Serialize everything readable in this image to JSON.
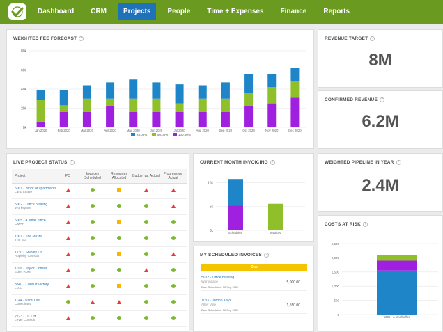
{
  "nav": {
    "items": [
      "Dashboard",
      "CRM",
      "Projects",
      "People",
      "Time + Expenses",
      "Finance",
      "Reports"
    ],
    "active": "Projects",
    "colors": {
      "bar": "#6a9a1f",
      "active": "#1f72b8"
    }
  },
  "forecast": {
    "title": "WEIGHTED FEE FORECAST",
    "chart_data": {
      "type": "bar",
      "stacked": true,
      "categories": [
        "Jan 2020",
        "Feb 2020",
        "Mar 2020",
        "Apr 2020",
        "May 2020",
        "Jun 2020",
        "Jul 2020",
        "Aug 2020",
        "Sep 2020",
        "Oct 2020",
        "Nov 2020",
        "Dec 2020"
      ],
      "series": [
        {
          "name": "100.00%",
          "color": "#a020e0",
          "values": [
            6000,
            16000,
            16000,
            22000,
            16000,
            16000,
            16000,
            16000,
            16000,
            22000,
            25000,
            31000
          ]
        },
        {
          "name": "50.00%",
          "color": "#8fc02a",
          "values": [
            23000,
            7000,
            14000,
            8000,
            14000,
            14000,
            9000,
            14000,
            14000,
            14000,
            17000,
            17000
          ]
        },
        {
          "name": "25.00%",
          "color": "#1e86c8",
          "values": [
            10000,
            16000,
            14000,
            17000,
            20000,
            17000,
            20000,
            14000,
            17000,
            20000,
            14000,
            14000
          ]
        }
      ],
      "yticks": [
        "0k",
        "20k",
        "40k",
        "60k",
        "80k"
      ],
      "ylim": [
        0,
        80000
      ],
      "legend": [
        "25.00%",
        "50.00%",
        "100.00%"
      ],
      "legend_position": "bottom"
    }
  },
  "revenue_target": {
    "title": "REVENUE TARGET",
    "value": "8M"
  },
  "confirmed_revenue": {
    "title": "CONFIRMED REVENUE",
    "value": "6.2M"
  },
  "pipeline": {
    "title": "WEIGHTED PIPELINE IN YEAR",
    "value": "2.4M"
  },
  "live_status": {
    "title": "LIVE PROJECT STATUS",
    "columns": [
      "Project",
      "PO",
      "Invoices Scheduled",
      "Resources Allocated",
      "Budget vs. Actual",
      "Progress vs. Actual"
    ],
    "rows": [
      {
        "name": "5001 - Block of apartments",
        "client": "Land Lease",
        "s": [
          "tri",
          "dot",
          "sq",
          "tri",
          "tri"
        ]
      },
      {
        "name": "5002 - Office building",
        "client": "Workspace",
        "s": [
          "tri",
          "dot",
          "dot",
          "dot",
          "tri"
        ]
      },
      {
        "name": "5005 - A small office",
        "client": "CMAP",
        "s": [
          "tri",
          "dot",
          "sq",
          "dot",
          "dot"
        ]
      },
      {
        "name": "1001 - The M Unit",
        "client": "The BG",
        "s": [
          "tri",
          "dot",
          "dot",
          "dot",
          "dot"
        ]
      },
      {
        "name": "1230 - Shipley Ltd",
        "client": "Appleby Consult",
        "s": [
          "tri",
          "dot",
          "sq",
          "dot",
          "tri"
        ]
      },
      {
        "name": "1016 - Taylor Consult",
        "client": "Eden Rose",
        "s": [
          "tri",
          "dot",
          "dot",
          "tri",
          "dot"
        ]
      },
      {
        "name": "3340 - Consult Victory",
        "client": "LD.C",
        "s": [
          "tri",
          "dot",
          "sq",
          "dot",
          "dot"
        ]
      },
      {
        "name": "1144 - Pami Dot",
        "client": "Consultant",
        "s": [
          "dot",
          "tri",
          "tri",
          "dot",
          "dot"
        ]
      },
      {
        "name": "2223 - LC Ltd",
        "client": "Level Consult",
        "s": [
          "tri",
          "dot",
          "dot",
          "dot",
          "dot"
        ]
      }
    ]
  },
  "month_invoicing": {
    "title": "CURRENT MONTH INVOICING",
    "chart_data": {
      "type": "bar",
      "categories": [
        "Scheduled",
        "Invoiced"
      ],
      "series": [
        {
          "color": "#a020e0",
          "values": [
            5200,
            5600
          ]
        },
        {
          "color": "#1e86c8",
          "values": [
            5600,
            0
          ]
        }
      ],
      "category_colors": [
        "#a020e0",
        "#8fc02a"
      ],
      "yticks": [
        "0k",
        "5k",
        "10k"
      ],
      "ylim": [
        0,
        12000
      ]
    }
  },
  "scheduled_invoices": {
    "title": "MY SCHEDULED INVOICES",
    "header": "Due",
    "items": [
      {
        "title": "5002 - Office building",
        "client": "Workspace",
        "date": "Date Scheduled: 30 Sep 2020",
        "amount": "5,000.00"
      },
      {
        "title": "1133 - Jordon Keys",
        "client": "Alley Vole",
        "date": "Date Scheduled: 30 Sep 2020",
        "amount": "1,550.00"
      }
    ]
  },
  "costs_risk": {
    "title": "COSTS AT RISK",
    "chart_data": {
      "type": "bar",
      "stacked": true,
      "categories": [
        "5005 - A small office"
      ],
      "series": [
        {
          "color": "#1e86c8",
          "values": [
            1550
          ]
        },
        {
          "color": "#a020e0",
          "values": [
            350
          ]
        },
        {
          "color": "#8fc02a",
          "values": [
            200
          ]
        }
      ],
      "yticks": [
        "0",
        "500",
        "1,000",
        "1,500",
        "2,000",
        "2,500"
      ],
      "ylim": [
        0,
        2500
      ]
    }
  }
}
